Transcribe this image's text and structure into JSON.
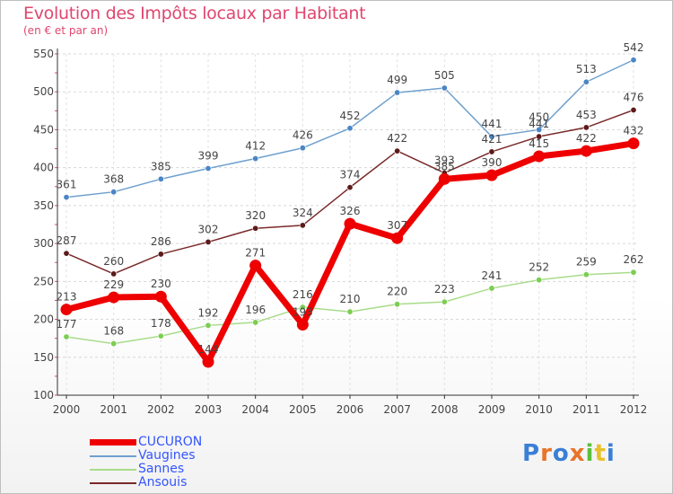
{
  "chart_data": {
    "type": "line",
    "title": "Evolution des Impôts locaux par Habitant",
    "subtitle": "(en € et par an)",
    "categories": [
      "2000",
      "2001",
      "2002",
      "2003",
      "2004",
      "2005",
      "2006",
      "2007",
      "2008",
      "2009",
      "2010",
      "2011",
      "2012"
    ],
    "ylim": [
      100,
      550
    ],
    "yticks": [
      "100",
      "150",
      "200",
      "250",
      "300",
      "350",
      "400",
      "450",
      "500",
      "550"
    ],
    "grid": true,
    "legend_position": "bottom-left",
    "series": [
      {
        "name": "Vaugines",
        "color": "#6fa0cf",
        "dot": "#4a86c5",
        "width": 1.5,
        "values": [
          361,
          368,
          385,
          399,
          412,
          426,
          452,
          499,
          505,
          441,
          450,
          513,
          542
        ]
      },
      {
        "name": "Sannes",
        "color": "#a8dc8a",
        "dot": "#7ccd52",
        "width": 1.5,
        "values": [
          177,
          168,
          178,
          192,
          196,
          216,
          210,
          220,
          223,
          241,
          252,
          259,
          262
        ]
      },
      {
        "name": "Ansouis",
        "color": "#7a2a2a",
        "dot": "#5c1a1a",
        "width": 1.5,
        "values": [
          287,
          260,
          286,
          302,
          320,
          324,
          374,
          422,
          393,
          421,
          441,
          453,
          476
        ]
      },
      {
        "name": "CUCURON",
        "color": "#ee0000",
        "dot": "#ee0000",
        "width": 7,
        "values": [
          213,
          229,
          230,
          144,
          271,
          193,
          326,
          307,
          385,
          390,
          415,
          422,
          432
        ]
      }
    ],
    "legend_order": [
      "CUCURON",
      "Vaugines",
      "Sannes",
      "Ansouis"
    ]
  },
  "logo": {
    "text": "Proxiti",
    "colors": [
      "#3a7fd6",
      "#e8742a",
      "#3a7fd6",
      "#e8742a",
      "#5bbf3a",
      "#e8c12a",
      "#3a7fd6"
    ]
  }
}
